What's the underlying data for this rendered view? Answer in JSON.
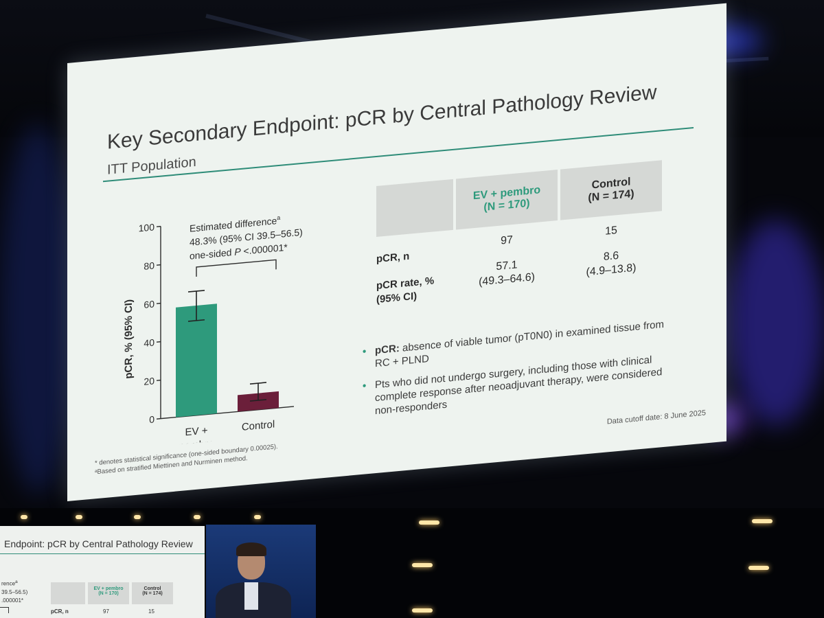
{
  "slide": {
    "title": "Key Secondary Endpoint: pCR by Central Pathology Review",
    "subtitle": "ITT Population",
    "annotation": {
      "line1": "Estimated difference",
      "line1_sup": "a",
      "line2": "48.3% (95% CI 39.5–56.5)",
      "line3_prefix": "one-sided ",
      "line3_p": "P",
      "line3_suffix": " <.000001*"
    },
    "table": {
      "col1_line1": "EV + pembro",
      "col1_line2": "(N = 170)",
      "col2_line1": "Control",
      "col2_line2": "(N = 174)",
      "row1_label": "pCR, n",
      "row1_ev": "97",
      "row1_ctrl": "15",
      "row2_label_line1": "pCR rate, %",
      "row2_label_line2": "(95% CI)",
      "row2_ev_line1": "57.1",
      "row2_ev_line2": "(49.3–64.6)",
      "row2_ctrl_line1": "8.6",
      "row2_ctrl_line2": "(4.9–13.8)"
    },
    "bullets": {
      "b1_bold": "pCR:",
      "b1_text": " absence of viable tumor (pT0N0) in examined tissue from RC + PLND",
      "b2_text": "Pts who did not undergo surgery, including those with clinical complete response after neoadjuvant therapy, were considered non-responders"
    },
    "footnote1": "* denotes statistical significance (one-sided boundary 0.00025).",
    "footnote2": "ᵃBased on stratified Miettinen and Nurminen method.",
    "cutoff": "Data cutoff date: 8 June 2025"
  },
  "chart_data": {
    "type": "bar",
    "ylabel": "pCR, % (95% CI)",
    "ylim": [
      0,
      100
    ],
    "yticks": [
      "0",
      "20",
      "40",
      "60",
      "80",
      "100"
    ],
    "categories": [
      "EV + pembro",
      "Control"
    ],
    "category_lines": [
      [
        "EV +",
        "pembro"
      ],
      [
        "Control"
      ]
    ],
    "values": [
      57.1,
      8.6
    ],
    "ci_low": [
      49.3,
      4.9
    ],
    "ci_high": [
      64.6,
      13.8
    ],
    "colors": [
      "#2e9a7c",
      "#6b1f3a"
    ]
  },
  "small_slide": {
    "title": "Endpoint: pCR by Central Pathology Review",
    "frag1": "rence",
    "frag1_sup": "a",
    "frag2": "39.5–56.5)",
    "frag3": ".000001*",
    "col1_line1": "EV + pembro",
    "col1_line2": "(N = 170)",
    "col2_line1": "Control",
    "col2_line2": "(N = 174)",
    "row_label": "pCR, n",
    "row_ev": "97",
    "row_ctrl": "15"
  }
}
